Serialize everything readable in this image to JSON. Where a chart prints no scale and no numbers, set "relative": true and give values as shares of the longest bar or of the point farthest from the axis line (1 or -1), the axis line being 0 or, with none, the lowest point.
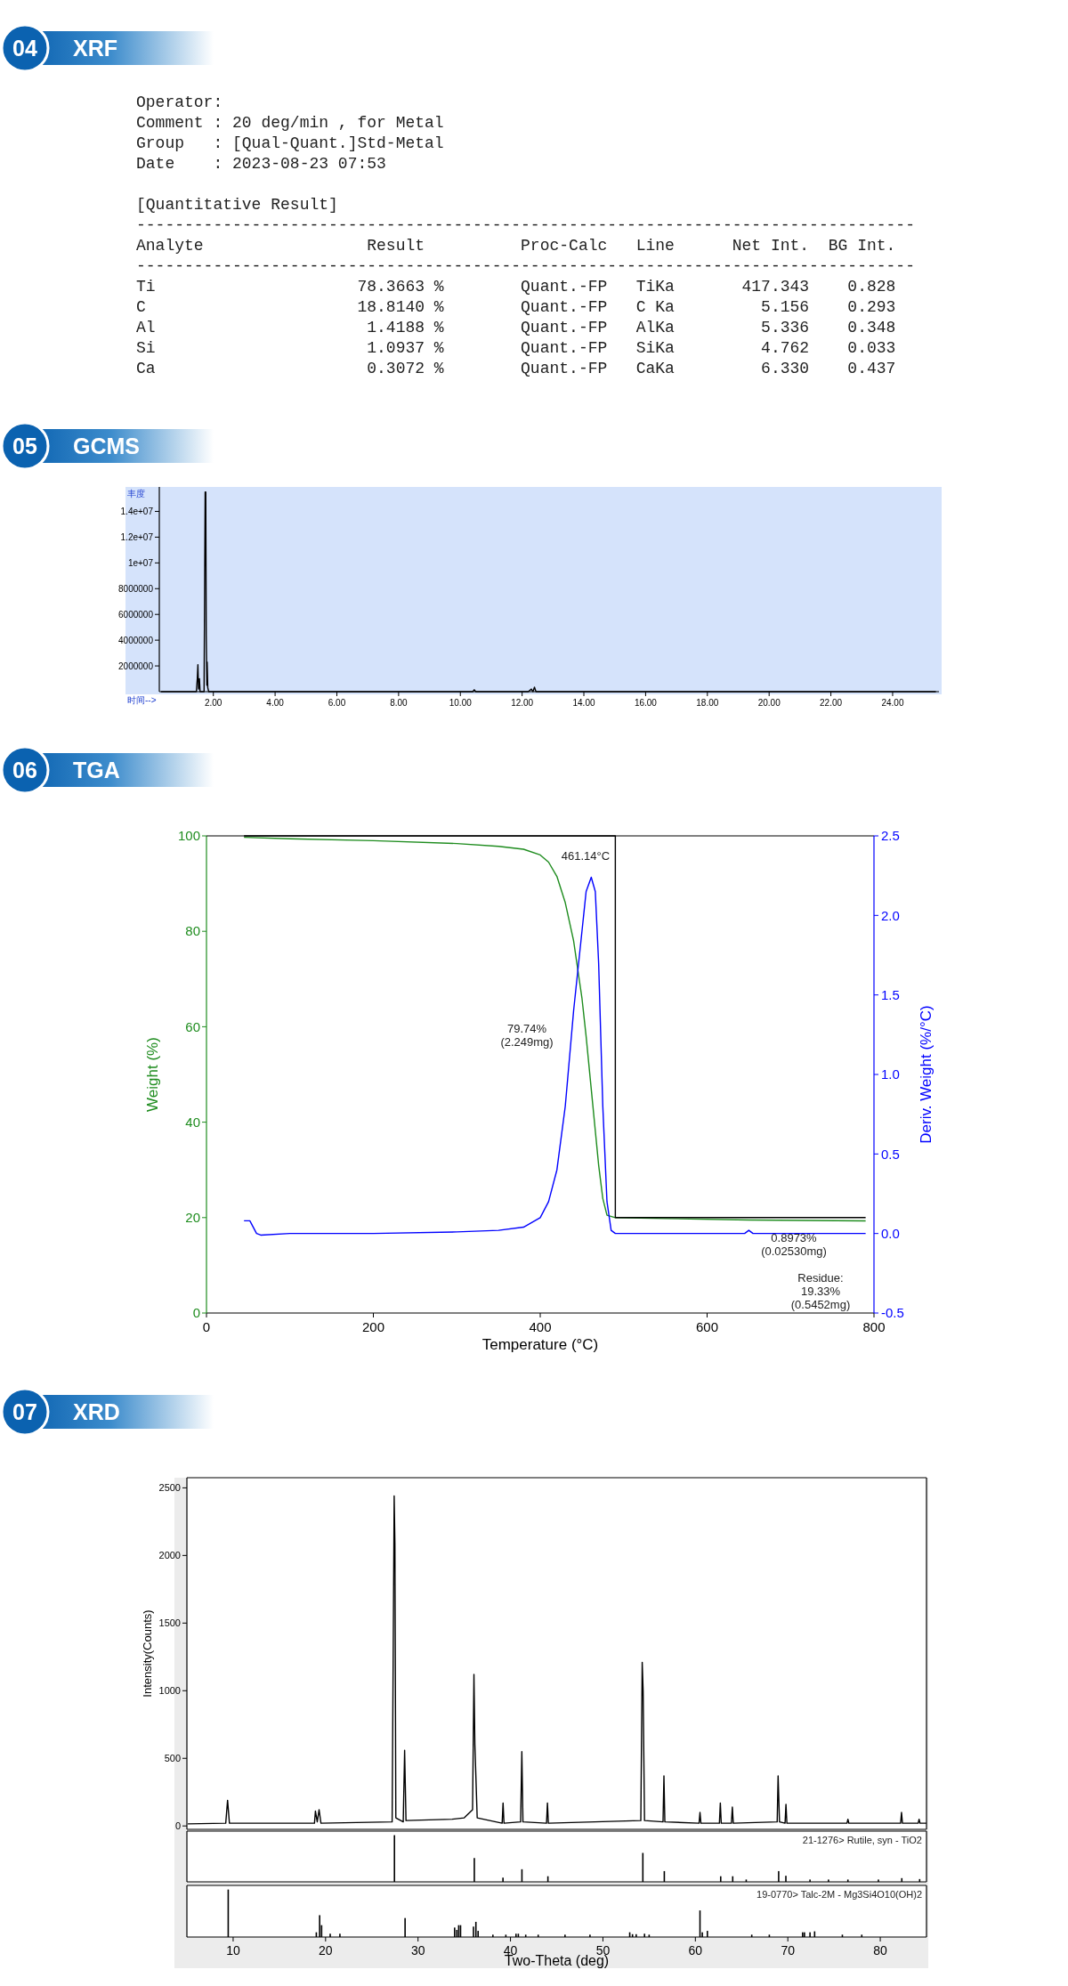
{
  "chart_data": [
    {
      "type": "other",
      "title": "04 XRF",
      "annotations": [
        "Operator:",
        "Comment : 20 deg/min , for Metal",
        "Group   : [Qual-Quant.]Std-Metal",
        "Date    : 2023-08-23 07:53",
        "[Quantitative Result]",
        "---------------------------------------------------------------------------------",
        "Analyte                 Result          Proc-Calc   Line      Net Int.  BG Int.",
        "---------------------------------------------------------------------------------",
        "Ti                     78.3663 %        Quant.-FP   TiKa       417.343    0.828",
        "C                      18.8140 %        Quant.-FP   C Ka         5.156    0.293",
        "Al                      1.4188 %        Quant.-FP   AlKa         5.336    0.348",
        "Si                      1.0937 %        Quant.-FP   SiKa         4.762    0.033",
        "Ca                      0.3072 %        Quant.-FP   CaKa         6.330    0.437"
      ]
    },
    {
      "type": "line",
      "title": "05 GCMS",
      "xlabel": "时间-->",
      "ylabel": "丰度",
      "color": "#000000",
      "x": [
        0.3,
        1.45,
        1.48,
        1.5,
        1.52,
        1.55,
        1.57,
        1.7,
        1.72,
        1.735,
        1.755,
        1.77,
        1.79,
        1.8,
        1.82,
        1.85,
        10.4,
        10.45,
        10.5,
        12.2,
        12.3,
        12.35,
        12.4,
        12.45,
        15.2,
        25.4
      ],
      "values": [
        0,
        0,
        1000000,
        2100000,
        200000,
        1000000,
        0,
        0,
        9000000,
        15500000,
        15500000,
        4400000,
        500000,
        2300000,
        300000,
        0,
        0,
        150000,
        0,
        0,
        200000,
        0,
        350000,
        0,
        0,
        0
      ],
      "xlim": [
        0.25,
        25.5
      ],
      "ylim": [
        0,
        15900000
      ],
      "xticks": [
        {
          "value": 2,
          "label": "2.00"
        },
        {
          "value": 4,
          "label": "4.00"
        },
        {
          "value": 6,
          "label": "6.00"
        },
        {
          "value": 8,
          "label": "8.00"
        },
        {
          "value": 10,
          "label": "10.00"
        },
        {
          "value": 12,
          "label": "12.00"
        },
        {
          "value": 14,
          "label": "14.00"
        },
        {
          "value": 16,
          "label": "16.00"
        },
        {
          "value": 18,
          "label": "18.00"
        },
        {
          "value": 20,
          "label": "20.00"
        },
        {
          "value": 22,
          "label": "22.00"
        },
        {
          "value": 24,
          "label": "24.00"
        }
      ],
      "yticks": [
        2000000,
        4000000,
        6000000,
        8000000,
        {
          "value": 10000000,
          "label": "1e+07"
        },
        {
          "value": 12000000,
          "label": "1.2e+07"
        },
        {
          "value": 14000000,
          "label": "1.4e+07"
        }
      ]
    },
    {
      "type": "line",
      "title": "06 TGA",
      "xlabel": "Temperature (°C)",
      "ylabel": "Weight (%)",
      "y2label": "Deriv. Weight (%/°C)",
      "series": [
        {
          "color": "#1e8c1e",
          "x": [
            45,
            100,
            200,
            300,
            350,
            380,
            400,
            410,
            420,
            430,
            440,
            450,
            455,
            460,
            465,
            470,
            475,
            480,
            490,
            550,
            650,
            790
          ],
          "values": [
            99.7,
            99.4,
            99.0,
            98.4,
            97.8,
            97.2,
            96,
            94.5,
            91.5,
            86,
            78,
            66,
            58,
            49,
            40,
            31,
            24,
            20.5,
            20,
            19.8,
            19.5,
            19.3
          ]
        },
        {
          "color": "#0000ff",
          "axis": "y2",
          "x": [
            45,
            52,
            60,
            65,
            100,
            200,
            300,
            350,
            380,
            400,
            410,
            420,
            430,
            440,
            450,
            455,
            461.14,
            466,
            470,
            475,
            480,
            485,
            490,
            550,
            645,
            650,
            655,
            790
          ],
          "values": [
            0.08,
            0.08,
            0.0,
            -0.01,
            0.0,
            0.0,
            0.01,
            0.02,
            0.04,
            0.1,
            0.2,
            0.4,
            0.8,
            1.4,
            1.9,
            2.15,
            2.24,
            2.15,
            1.7,
            0.8,
            0.2,
            0.02,
            0.0,
            0.0,
            0.0,
            0.02,
            0.0,
            0.0
          ]
        },
        {
          "color": "#000000",
          "x": [
            45,
            490,
            490,
            790
          ],
          "values": [
            100,
            100,
            20,
            20
          ]
        }
      ],
      "xlim": [
        0,
        800
      ],
      "ylim": [
        0,
        100
      ],
      "y2lim": [
        -0.5,
        2.5
      ],
      "xticks": [
        0,
        200,
        400,
        600,
        800
      ],
      "yticks": [
        0,
        20,
        40,
        60,
        80,
        100
      ],
      "y2ticks": [
        -0.5,
        {
          "value": 0,
          "label": "0.0"
        },
        0.5,
        {
          "value": 1,
          "label": "1.0"
        },
        1.5,
        {
          "value": 2,
          "label": "2.0"
        },
        2.5
      ],
      "annotations": [
        "461.14°C",
        "79.74%\n(2.249mg)",
        "0.8973%\n(0.02530mg)",
        "Residue:\n19.33%\n(0.5452mg)"
      ]
    },
    {
      "type": "line",
      "title": "07 XRD",
      "ylabel": "Intensity(Counts)",
      "color": "#000000",
      "tick_labels": "y",
      "x": [
        5.1,
        9.2,
        9.4,
        9.6,
        18.8,
        18.9,
        19.1,
        19.3,
        19.5,
        27.2,
        27.3,
        27.42,
        27.5,
        27.6,
        28.4,
        28.55,
        28.7,
        33.7,
        35.0,
        35.9,
        36.05,
        36.15,
        36.4,
        39.1,
        39.2,
        39.3,
        41.1,
        41.23,
        41.35,
        43.9,
        44.0,
        44.1,
        54.1,
        54.25,
        54.35,
        54.5,
        56.5,
        56.6,
        56.7,
        60.4,
        60.5,
        60.6,
        62.6,
        62.7,
        62.8,
        63.9,
        64.0,
        64.1,
        68.85,
        68.95,
        69.1,
        69.7,
        69.8,
        69.9,
        76.4,
        76.5,
        76.6,
        82.2,
        82.3,
        82.4,
        84.1,
        84.2,
        84.3,
        85
      ],
      "values": [
        15,
        20,
        190,
        20,
        20,
        110,
        30,
        120,
        20,
        30,
        1100,
        2440,
        2080,
        60,
        30,
        560,
        40,
        50,
        60,
        120,
        1120,
        600,
        60,
        20,
        170,
        20,
        30,
        550,
        30,
        20,
        170,
        20,
        40,
        1210,
        1000,
        40,
        30,
        370,
        30,
        20,
        100,
        20,
        20,
        170,
        20,
        20,
        140,
        20,
        30,
        370,
        30,
        20,
        160,
        20,
        20,
        50,
        20,
        20,
        100,
        20,
        20,
        50,
        20,
        20
      ],
      "xlim": [
        5,
        85
      ],
      "ylim": [
        -25,
        2575
      ],
      "xticks": [
        10,
        20,
        30,
        40,
        50,
        60,
        70,
        80
      ],
      "yticks": [
        0,
        500,
        1000,
        1500,
        2000,
        2500
      ]
    },
    {
      "type": "bar",
      "relative": true,
      "color": "#000000",
      "tick_labels": false,
      "annotations": [
        "21-1276> Rutile, syn - TiO2"
      ],
      "x": [
        27.45,
        36.09,
        39.19,
        41.24,
        44.05,
        54.32,
        56.64,
        62.74,
        64.04,
        65.5,
        69.01,
        69.79,
        72.4,
        74.4,
        76.5,
        79.8,
        82.33,
        84.26
      ],
      "values": [
        1,
        0.51,
        0.09,
        0.27,
        0.12,
        0.62,
        0.23,
        0.12,
        0.12,
        0.05,
        0.23,
        0.13,
        0.05,
        0.05,
        0.05,
        0.05,
        0.08,
        0.06
      ],
      "xlim": [
        5,
        85
      ],
      "xticks": [
        10,
        20,
        30,
        40,
        50,
        60,
        70,
        80
      ]
    },
    {
      "type": "bar",
      "relative": true,
      "color": "#000000",
      "tick_labels": "x",
      "xlabel": "Two-Theta (deg)",
      "annotations": [
        "19-0770> Talc-2M - Mg3Si4O10(OH)2"
      ],
      "x": [
        9.47,
        19.0,
        19.36,
        19.57,
        20.5,
        21.55,
        28.6,
        33.96,
        34.2,
        34.4,
        34.6,
        36.0,
        36.26,
        36.5,
        38.1,
        39.5,
        40.6,
        40.85,
        41.65,
        43.0,
        45.9,
        48.6,
        52.9,
        53.2,
        53.6,
        54.5,
        55.0,
        60.5,
        60.75,
        61.3,
        66.1,
        68.0,
        71.6,
        71.8,
        72.4,
        72.9,
        75.9,
        78.0
      ],
      "values": [
        1,
        0.1,
        0.46,
        0.25,
        0.07,
        0.07,
        0.4,
        0.2,
        0.15,
        0.25,
        0.25,
        0.22,
        0.32,
        0.13,
        0.05,
        0.05,
        0.07,
        0.07,
        0.05,
        0.05,
        0.05,
        0.05,
        0.1,
        0.06,
        0.06,
        0.07,
        0.05,
        0.56,
        0.1,
        0.13,
        0.05,
        0.05,
        0.1,
        0.1,
        0.1,
        0.12,
        0.05,
        0.05
      ],
      "xlim": [
        5,
        85
      ],
      "xticks": [
        10,
        20,
        30,
        40,
        50,
        60,
        70,
        80
      ]
    }
  ]
}
